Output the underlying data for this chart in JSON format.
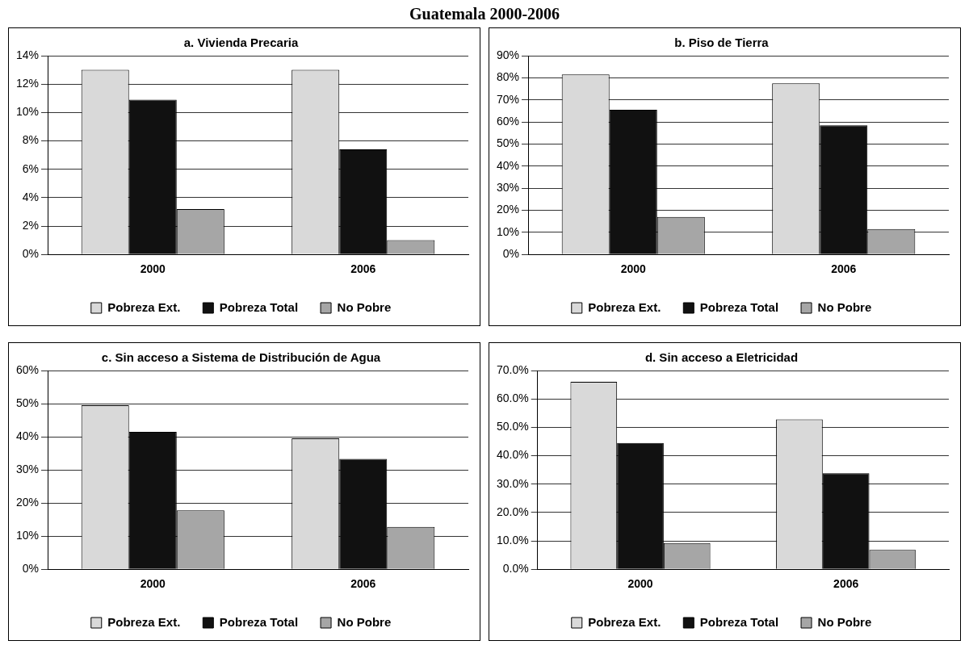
{
  "chart_data": [
    {
      "type": "bar",
      "title": "a. Vivienda Precaria",
      "annotations": [
        "Guatemala 2000-2006"
      ],
      "categories": [
        "2000",
        "2006"
      ],
      "series": [
        {
          "name": "Pobreza Ext.",
          "color": "#d9d9d9",
          "values": [
            13,
            13
          ]
        },
        {
          "name": "Pobreza Total",
          "color": "#111111",
          "values": [
            10.9,
            7.4
          ]
        },
        {
          "name": "No Pobre",
          "color": "#a6a6a6",
          "values": [
            3.2,
            1.0
          ]
        }
      ],
      "ylim": [
        0,
        14
      ],
      "yticks": [
        {
          "value": 0,
          "label": "0%"
        },
        {
          "value": 2,
          "label": "2%"
        },
        {
          "value": 4,
          "label": "4%"
        },
        {
          "value": 6,
          "label": "6%"
        },
        {
          "value": 8,
          "label": "8%"
        },
        {
          "value": 10,
          "label": "10%"
        },
        {
          "value": 12,
          "label": "12%"
        },
        {
          "value": 14,
          "label": "14%"
        }
      ],
      "grid": "y",
      "legend": "bottom"
    },
    {
      "type": "bar",
      "title": "b. Piso de Tierra",
      "categories": [
        "2000",
        "2006"
      ],
      "series": [
        {
          "name": "Pobreza Ext.",
          "color": "#d9d9d9",
          "values": [
            81.5,
            77.5
          ]
        },
        {
          "name": "Pobreza Total",
          "color": "#111111",
          "values": [
            65.5,
            58.5
          ]
        },
        {
          "name": "No Pobre",
          "color": "#a6a6a6",
          "values": [
            17,
            11.5
          ]
        }
      ],
      "ylim": [
        0,
        90
      ],
      "yticks": [
        {
          "value": 0,
          "label": "0%"
        },
        {
          "value": 10,
          "label": "10%"
        },
        {
          "value": 20,
          "label": "20%"
        },
        {
          "value": 30,
          "label": "30%"
        },
        {
          "value": 40,
          "label": "40%"
        },
        {
          "value": 50,
          "label": "50%"
        },
        {
          "value": 60,
          "label": "60%"
        },
        {
          "value": 70,
          "label": "70%"
        },
        {
          "value": 80,
          "label": "80%"
        },
        {
          "value": 90,
          "label": "90%"
        }
      ],
      "grid": "y",
      "legend": "bottom"
    },
    {
      "type": "bar",
      "title": "c. Sin acceso a Sistema de Distribución de Agua",
      "categories": [
        "2000",
        "2006"
      ],
      "series": [
        {
          "name": "Pobreza Ext.",
          "color": "#d9d9d9",
          "values": [
            49.5,
            39.5
          ]
        },
        {
          "name": "Pobreza Total",
          "color": "#111111",
          "values": [
            41.5,
            33.3
          ]
        },
        {
          "name": "No Pobre",
          "color": "#a6a6a6",
          "values": [
            17.8,
            12.8
          ]
        }
      ],
      "ylim": [
        0,
        60
      ],
      "yticks": [
        {
          "value": 0,
          "label": "0%"
        },
        {
          "value": 10,
          "label": "10%"
        },
        {
          "value": 20,
          "label": "20%"
        },
        {
          "value": 30,
          "label": "30%"
        },
        {
          "value": 40,
          "label": "40%"
        },
        {
          "value": 50,
          "label": "50%"
        },
        {
          "value": 60,
          "label": "60%"
        }
      ],
      "grid": "y",
      "legend": "bottom"
    },
    {
      "type": "bar",
      "title": "d. Sin acceso a Eletricidad",
      "categories": [
        "2000",
        "2006"
      ],
      "series": [
        {
          "name": "Pobreza Ext.",
          "color": "#d9d9d9",
          "values": [
            66,
            52.8
          ]
        },
        {
          "name": "Pobreza Total",
          "color": "#111111",
          "values": [
            44.5,
            33.8
          ]
        },
        {
          "name": "No Pobre",
          "color": "#a6a6a6",
          "values": [
            9.2,
            6.8
          ]
        }
      ],
      "ylim": [
        0,
        70
      ],
      "yticks": [
        {
          "value": 0,
          "label": "0.0%"
        },
        {
          "value": 10,
          "label": "10.0%"
        },
        {
          "value": 20,
          "label": "20.0%"
        },
        {
          "value": 30,
          "label": "30.0%"
        },
        {
          "value": 40,
          "label": "40.0%"
        },
        {
          "value": 50,
          "label": "50.0%"
        },
        {
          "value": 60,
          "label": "60.0%"
        },
        {
          "value": 70,
          "label": "70.0%"
        }
      ],
      "grid": "y",
      "legend": "bottom"
    }
  ]
}
